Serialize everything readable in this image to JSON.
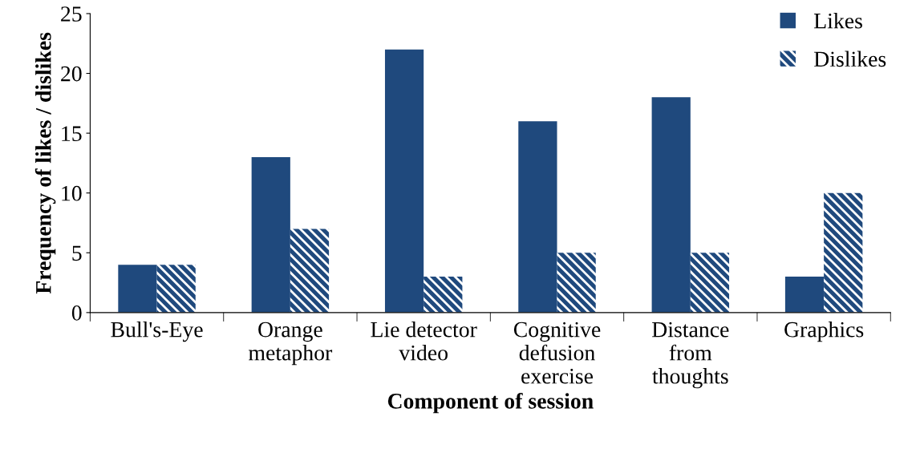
{
  "chart_data": {
    "type": "bar",
    "xlabel": "Component of session",
    "ylabel": "Frequency of likes / dislikes",
    "categories": [
      "Bull's-Eye",
      "Orange\nmetaphor",
      "Lie detector\nvideo",
      "Cognitive\ndefusion\nexercise",
      "Distance\nfrom\nthoughts",
      "Graphics"
    ],
    "series": [
      {
        "name": "Likes",
        "color": "#1f497d",
        "values": [
          4,
          13,
          22,
          16,
          18,
          3
        ]
      },
      {
        "name": "Dislikes",
        "color": "#1f497d",
        "values": [
          4,
          7,
          3,
          5,
          5,
          10
        ]
      }
    ],
    "ylim": [
      0,
      25
    ],
    "yticks": [
      0,
      5,
      10,
      15,
      20,
      25
    ],
    "grid": false,
    "legend": "top right"
  }
}
